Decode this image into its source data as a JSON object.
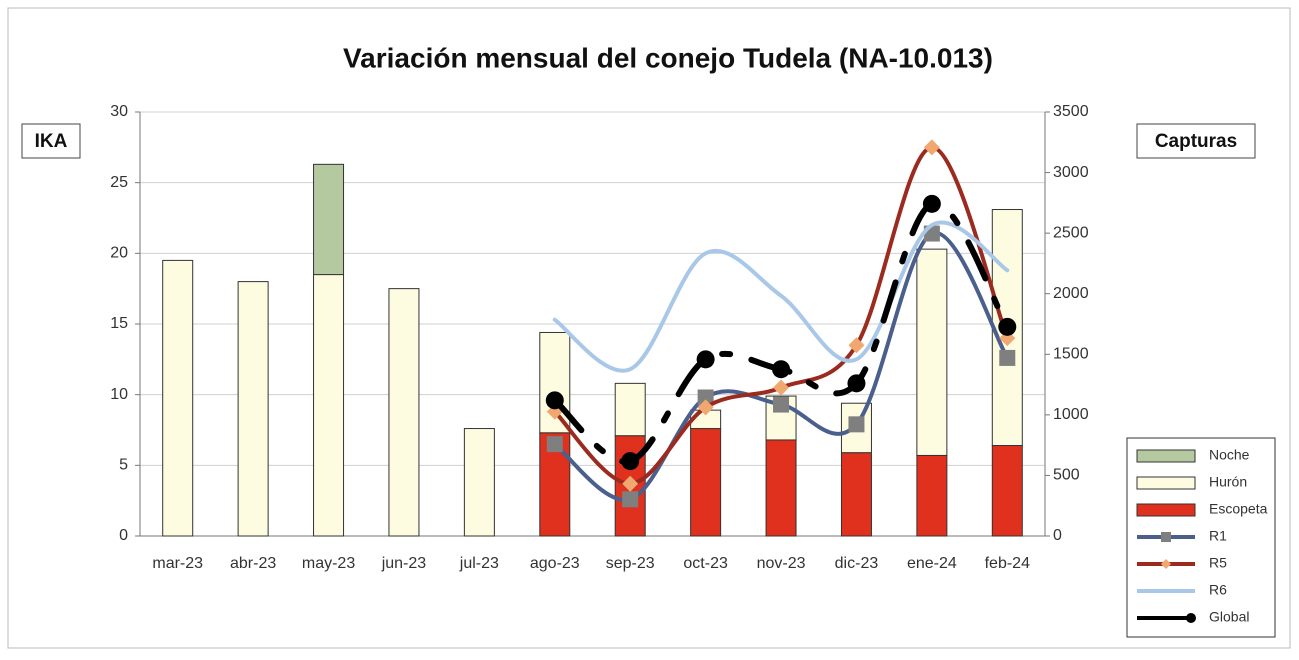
{
  "chart_data": {
    "type": "bar",
    "title": "Variación mensual del conejo Tudela (NA-10.013)",
    "y_label": "IKA",
    "y2_label": "Capturas",
    "categories": [
      "mar-23",
      "abr-23",
      "may-23",
      "jun-23",
      "jul-23",
      "ago-23",
      "sep-23",
      "oct-23",
      "nov-23",
      "dic-23",
      "ene-24",
      "feb-24"
    ],
    "ylim": [
      0,
      30
    ],
    "yticks": [
      0,
      5,
      10,
      15,
      20,
      25,
      30
    ],
    "y2lim": [
      0,
      3500
    ],
    "y2ticks": [
      0,
      500,
      1000,
      1500,
      2000,
      2500,
      3000,
      3500
    ],
    "grid": true,
    "legend": "lower right",
    "series": [
      {
        "name": "Escopeta",
        "type": "bar",
        "axis": "y2",
        "color": "#e0301e",
        "values": [
          null,
          null,
          null,
          null,
          null,
          852,
          828,
          887,
          793,
          688,
          665,
          747
        ]
      },
      {
        "name": "Hurón",
        "type": "bar",
        "axis": "y2",
        "color": "#fdfbe0",
        "values": [
          2275,
          2100,
          2158,
          2042,
          887,
          828,
          432,
          152,
          362,
          408,
          1703,
          1948
        ]
      },
      {
        "name": "Noche",
        "type": "bar",
        "axis": "y2",
        "color": "#b5c9a0",
        "values": [
          null,
          null,
          910,
          null,
          null,
          null,
          null,
          null,
          null,
          null,
          null,
          null
        ]
      },
      {
        "name": "R1",
        "type": "line",
        "color": "#4a5f8c",
        "marker": "square",
        "values": [
          null,
          null,
          null,
          null,
          null,
          6.5,
          2.6,
          9.8,
          9.3,
          7.9,
          21.4,
          12.6
        ]
      },
      {
        "name": "R5",
        "type": "line",
        "color": "#9b2a1f",
        "marker": "diamond",
        "values": [
          null,
          null,
          null,
          null,
          null,
          8.8,
          3.7,
          9.1,
          10.5,
          13.5,
          27.5,
          14.0
        ]
      },
      {
        "name": "R6",
        "type": "line",
        "color": "#a9c8e8",
        "marker": "none",
        "values": [
          null,
          null,
          null,
          null,
          null,
          15.3,
          11.8,
          20.0,
          17.0,
          12.5,
          22.0,
          18.8
        ]
      },
      {
        "name": "Global",
        "type": "line",
        "color": "#000000",
        "marker": "circle",
        "values": [
          null,
          null,
          null,
          null,
          null,
          9.6,
          5.3,
          12.5,
          11.8,
          10.8,
          23.5,
          14.8
        ]
      }
    ]
  }
}
